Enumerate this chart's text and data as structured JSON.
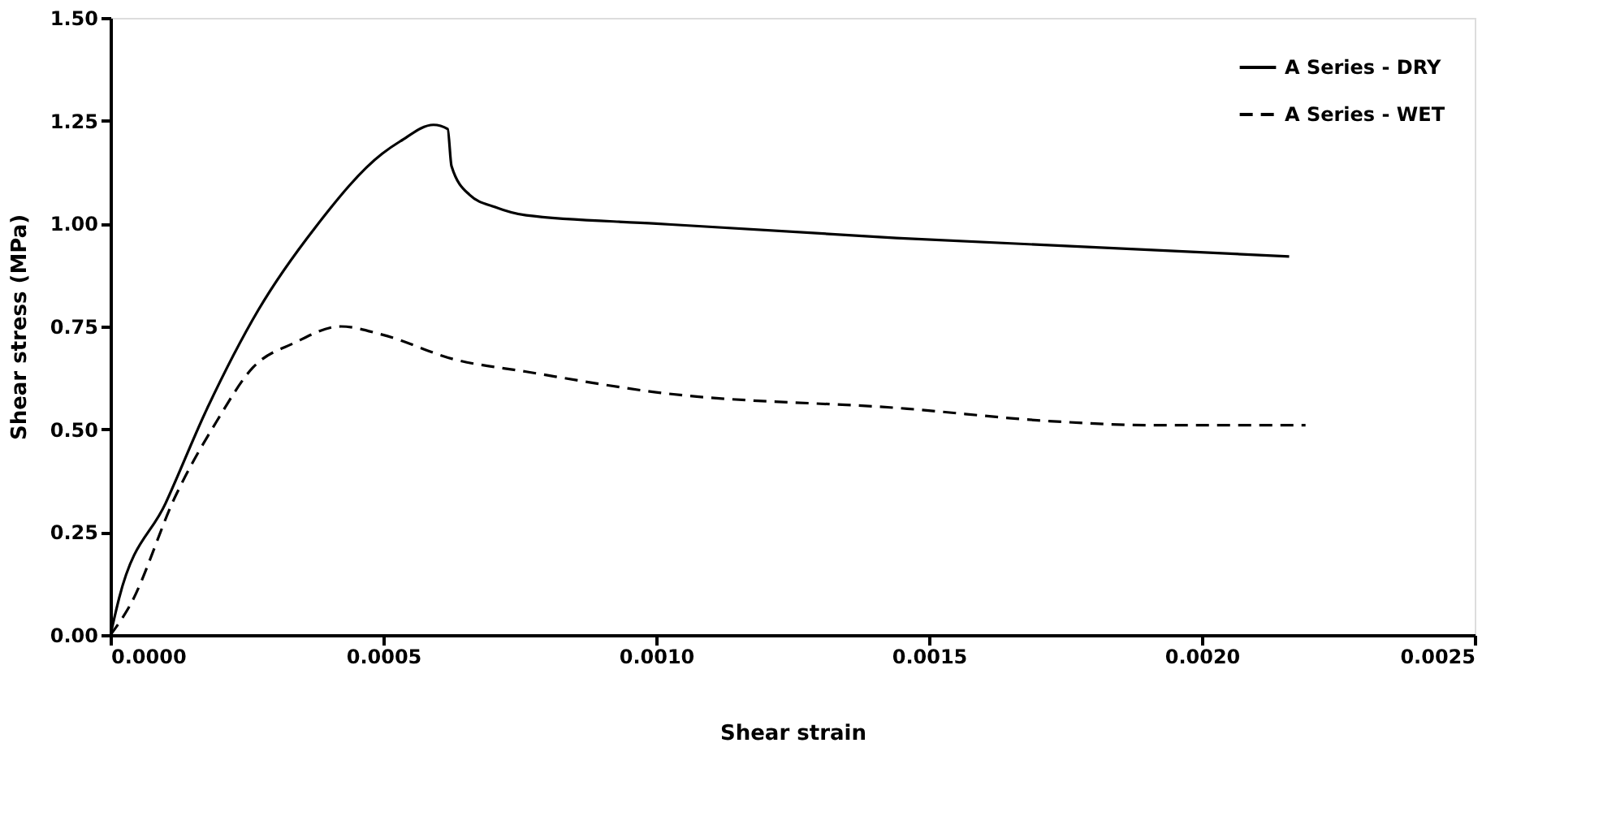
{
  "chart_data": {
    "type": "line",
    "xlabel": "Shear strain",
    "ylabel": "Shear stress (MPa)",
    "xlim": [
      0,
      0.0025
    ],
    "xticks": [
      {
        "value": 0,
        "label": "0.0000"
      },
      {
        "value": 0.0005,
        "label": "0.0005"
      },
      {
        "value": 0.001,
        "label": "0.0010"
      },
      {
        "value": 0.0015,
        "label": "0.0015"
      },
      {
        "value": 0.002,
        "label": "0.0020"
      },
      {
        "value": 0.0025,
        "label": "0.0025"
      }
    ],
    "ylim": [
      0,
      1.5
    ],
    "yticks": [
      {
        "value": 0,
        "label": "0.00"
      },
      {
        "value": 0.25,
        "label": "0.25"
      },
      {
        "value": 0.5,
        "label": "0.50"
      },
      {
        "value": 0.75,
        "label": "0.75"
      },
      {
        "value": 1,
        "label": "1.00"
      },
      {
        "value": 1.25,
        "label": "1.25"
      },
      {
        "value": 1.5,
        "label": "1.50"
      }
    ],
    "grid": false,
    "legend": "top right",
    "marker": "none",
    "series": [
      {
        "name": "A Series - DRY",
        "color": "#000000",
        "line_style": "solid",
        "x": [
          0,
          1.6e-05,
          0.000101,
          0.000177,
          0.000271,
          0.000375,
          0.000498,
          0.000531,
          0.000592,
          0.000618,
          0.000625,
          0.000658,
          0.000705,
          0.000762,
          0.001,
          0.00144,
          0.00216
        ],
        "values": [
          0,
          0.09,
          0.32,
          0.55,
          0.79,
          0.99,
          1.17,
          1.2,
          1.24,
          1.23,
          1.14,
          1.07,
          1.04,
          1.02,
          1.0,
          0.965,
          0.92
        ]
      },
      {
        "name": "A Series - WET",
        "color": "#000000",
        "line_style": "dashed",
        "x": [
          0,
          3.5e-05,
          0.00012,
          0.000195,
          0.000261,
          0.000337,
          0.000422,
          0.000498,
          0.00063,
          0.000762,
          0.001,
          0.00146,
          0.00172,
          0.00191,
          0.00219
        ],
        "values": [
          0,
          0.07,
          0.34,
          0.52,
          0.65,
          0.71,
          0.75,
          0.73,
          0.67,
          0.64,
          0.59,
          0.55,
          0.52,
          0.51,
          0.51
        ]
      }
    ]
  }
}
